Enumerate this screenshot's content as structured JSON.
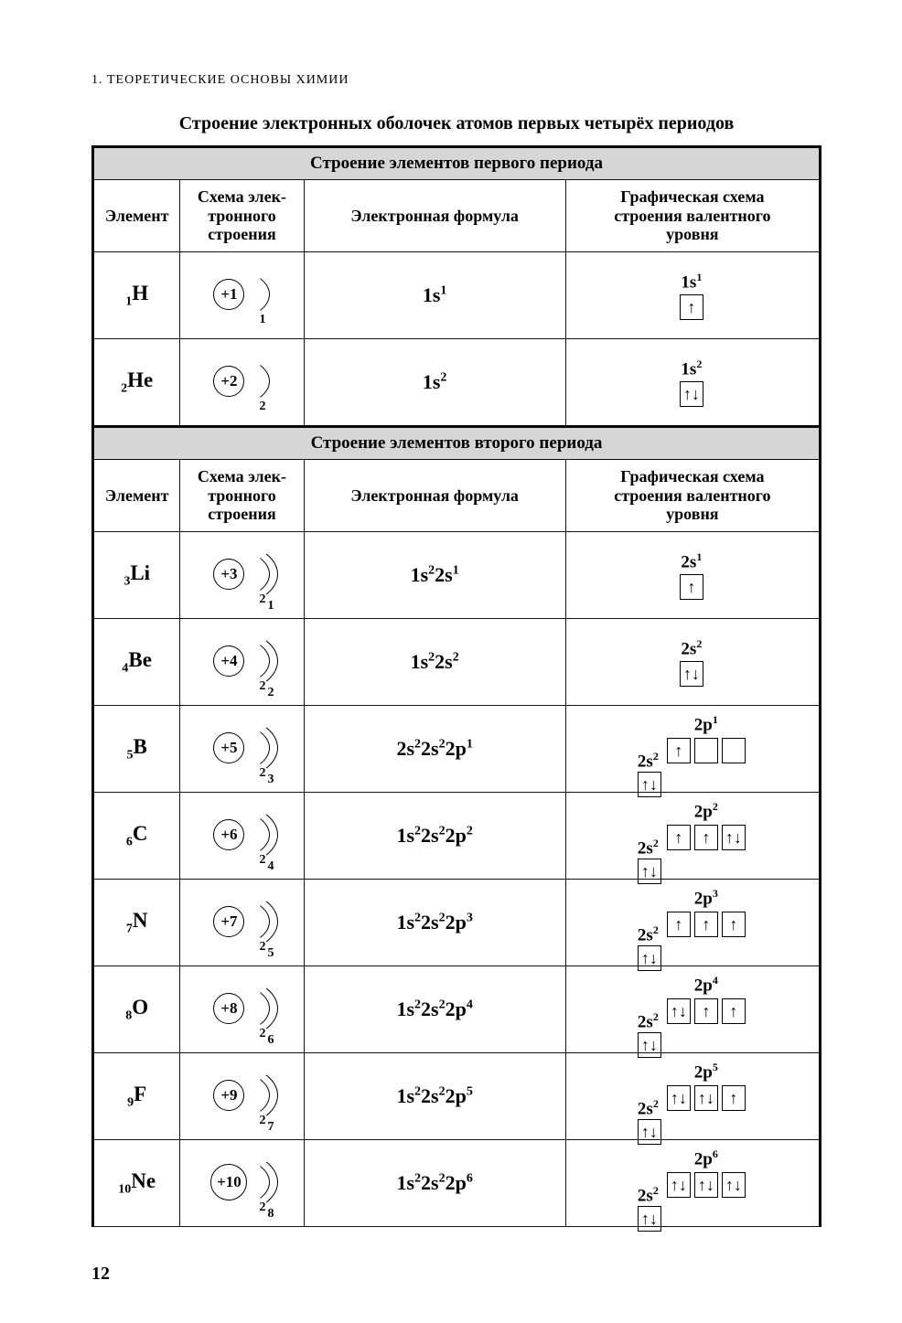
{
  "running_head": "1. ТЕОРЕТИЧЕСКИЕ ОСНОВЫ ХИМИИ",
  "title": "Строение электронных оболочек атомов первых четырёх периодов",
  "page_number": "12",
  "columns": {
    "element": "Элемент",
    "scheme": "Схема элек-\nтронного\nстроения",
    "formula": "Электронная формула",
    "graphic": "Графическая схема\nстроения валентного\nуровня"
  },
  "period1": {
    "section_title": "Строение элементов первого периода",
    "rows": [
      {
        "z": "1",
        "sym": "H",
        "nucleus": "+1",
        "shells": [
          1
        ],
        "formula": [
          [
            "1s",
            "1"
          ]
        ],
        "valence": {
          "layout": "simple",
          "label": [
            [
              "1s",
              "1"
            ]
          ],
          "s": [
            "u"
          ]
        }
      },
      {
        "z": "2",
        "sym": "He",
        "nucleus": "+2",
        "shells": [
          2
        ],
        "formula": [
          [
            "1s",
            "2"
          ]
        ],
        "valence": {
          "layout": "simple",
          "label": [
            [
              "1s",
              "2"
            ]
          ],
          "s": [
            "ud"
          ]
        }
      }
    ]
  },
  "period2": {
    "section_title": "Строение элементов второго периода",
    "rows": [
      {
        "z": "3",
        "sym": "Li",
        "nucleus": "+3",
        "shells": [
          2,
          1
        ],
        "formula": [
          [
            "1s",
            "2"
          ],
          [
            "2s",
            "1"
          ]
        ],
        "valence": {
          "layout": "simple",
          "label": [
            [
              "2s",
              "1"
            ]
          ],
          "s": [
            "u"
          ]
        }
      },
      {
        "z": "4",
        "sym": "Be",
        "nucleus": "+4",
        "shells": [
          2,
          2
        ],
        "formula": [
          [
            "1s",
            "2"
          ],
          [
            "2s",
            "2"
          ]
        ],
        "valence": {
          "layout": "simple",
          "label": [
            [
              "2s",
              "2"
            ]
          ],
          "s": [
            "ud"
          ]
        }
      },
      {
        "z": "5",
        "sym": "B",
        "nucleus": "+5",
        "shells": [
          2,
          3
        ],
        "formula": [
          [
            "2s",
            "2"
          ],
          [
            "2s",
            "2"
          ],
          [
            "2p",
            "1"
          ]
        ],
        "valence": {
          "layout": "sp",
          "s_label": [
            [
              "2s",
              "2"
            ]
          ],
          "p_label": [
            [
              "2p",
              "1"
            ]
          ],
          "s": [
            "ud"
          ],
          "p": [
            "u",
            "",
            ""
          ]
        }
      },
      {
        "z": "6",
        "sym": "C",
        "nucleus": "+6",
        "shells": [
          2,
          4
        ],
        "formula": [
          [
            "1s",
            "2"
          ],
          [
            "2s",
            "2"
          ],
          [
            "2p",
            "2"
          ]
        ],
        "valence": {
          "layout": "sp",
          "s_label": [
            [
              "2s",
              "2"
            ]
          ],
          "p_label": [
            [
              "2p",
              "2"
            ]
          ],
          "s": [
            "ud"
          ],
          "p": [
            "u",
            "u",
            "ud"
          ]
        }
      },
      {
        "z": "7",
        "sym": "N",
        "nucleus": "+7",
        "shells": [
          2,
          5
        ],
        "formula": [
          [
            "1s",
            "2"
          ],
          [
            "2s",
            "2"
          ],
          [
            "2p",
            "3"
          ]
        ],
        "valence": {
          "layout": "sp",
          "s_label": [
            [
              "2s",
              "2"
            ]
          ],
          "p_label": [
            [
              "2p",
              "3"
            ]
          ],
          "s": [
            "ud"
          ],
          "p": [
            "u",
            "u",
            "u"
          ]
        }
      },
      {
        "z": "8",
        "sym": "O",
        "nucleus": "+8",
        "shells": [
          2,
          6
        ],
        "formula": [
          [
            "1s",
            "2"
          ],
          [
            "2s",
            "2"
          ],
          [
            "2p",
            "4"
          ]
        ],
        "valence": {
          "layout": "sp",
          "s_label": [
            [
              "2s",
              "2"
            ]
          ],
          "p_label": [
            [
              "2p",
              "4"
            ]
          ],
          "s": [
            "ud"
          ],
          "p": [
            "ud",
            "u",
            "u"
          ]
        }
      },
      {
        "z": "9",
        "sym": "F",
        "nucleus": "+9",
        "shells": [
          2,
          7
        ],
        "formula": [
          [
            "1s",
            "2"
          ],
          [
            "2s",
            "2"
          ],
          [
            "2p",
            "5"
          ]
        ],
        "valence": {
          "layout": "sp",
          "s_label": [
            [
              "2s",
              "2"
            ]
          ],
          "p_label": [
            [
              "2p",
              "5"
            ]
          ],
          "s": [
            "ud"
          ],
          "p": [
            "ud",
            "ud",
            "u"
          ]
        }
      },
      {
        "z": "10",
        "sym": "Ne",
        "nucleus": "+10",
        "shells": [
          2,
          8
        ],
        "formula": [
          [
            "1s",
            "2"
          ],
          [
            "2s",
            "2"
          ],
          [
            "2p",
            "6"
          ]
        ],
        "valence": {
          "layout": "sp",
          "s_label": [
            [
              "2s",
              "2"
            ]
          ],
          "p_label": [
            [
              "2p",
              "6"
            ]
          ],
          "s": [
            "ud"
          ],
          "p": [
            "ud",
            "ud",
            "ud"
          ]
        }
      }
    ]
  },
  "style": {
    "background": "#ffffff",
    "text_color": "#000000",
    "section_bg": "#d6d6d6",
    "border_color": "#111111",
    "thick_border": "#000000",
    "font_family": "Times New Roman",
    "title_fontsize": 20,
    "header_fontsize": 18,
    "body_fontsize": 20
  }
}
